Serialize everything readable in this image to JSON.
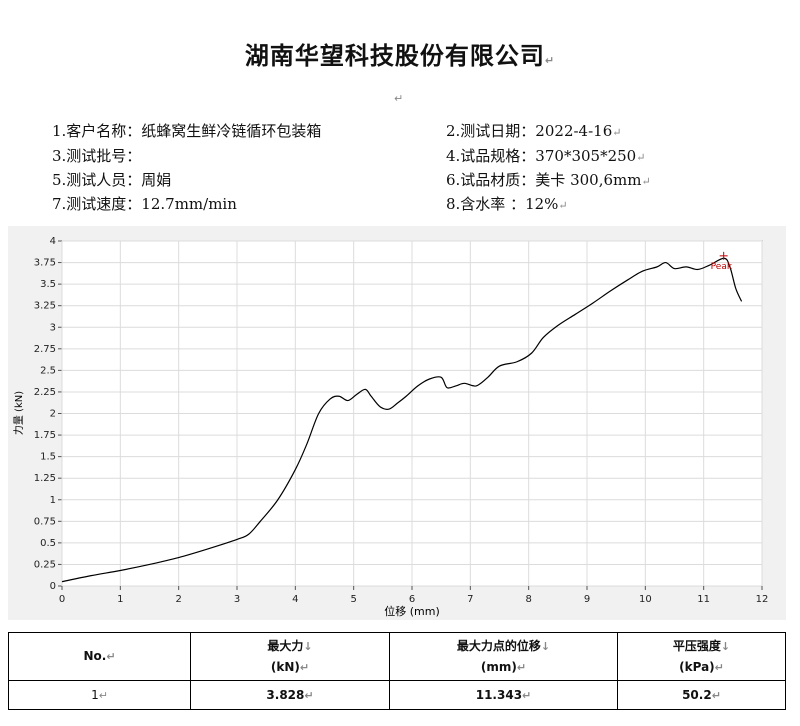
{
  "title": "湖南华望科技股份有限公司",
  "info": {
    "customer": "1.客户名称：纸蜂窝生鲜冷链循环包装箱",
    "test_date": "2.测试日期：2022-4-16",
    "batch_no": "3.测试批号：",
    "spec": "4.试品规格：370*305*250",
    "tester": "5.测试人员：周娟",
    "material": "6.试品材质：美卡 300,6mm",
    "speed": "7.测试速度：12.7mm/min",
    "moisture": "8.含水率  ：12%"
  },
  "chart_data": {
    "type": "line",
    "xlabel": "位移 (mm)",
    "ylabel": "力量 (kN)",
    "xlim": [
      0,
      12
    ],
    "ylim": [
      0,
      4
    ],
    "x_ticks": [
      "0",
      "1",
      "2",
      "3",
      "4",
      "5",
      "6",
      "7",
      "8",
      "9",
      "10",
      "11",
      "12"
    ],
    "y_ticks": [
      "0",
      "0.25",
      "0.5",
      "0.75",
      "1",
      "1.25",
      "1.5",
      "1.75",
      "2",
      "2.25",
      "2.5",
      "2.75",
      "3",
      "3.25",
      "3.5",
      "3.75",
      "4"
    ],
    "grid": true,
    "annotation": "Peak",
    "peak": {
      "x": 11.343,
      "y": 3.828
    },
    "series": [
      {
        "x": [
          0,
          0.5,
          1,
          1.5,
          2,
          2.5,
          3,
          3.2,
          3.4,
          3.7,
          4,
          4.2,
          4.4,
          4.6,
          4.75,
          4.9,
          5.05,
          5.2,
          5.3,
          5.45,
          5.6,
          5.75,
          5.9,
          6.1,
          6.3,
          6.5,
          6.6,
          6.75,
          6.9,
          7.1,
          7.3,
          7.5,
          7.8,
          8.05,
          8.25,
          8.5,
          8.8,
          9.1,
          9.4,
          9.7,
          9.95,
          10.2,
          10.35,
          10.5,
          10.7,
          10.9,
          11.1,
          11.35,
          11.45,
          11.55,
          11.65
        ],
        "y": [
          0.05,
          0.12,
          0.18,
          0.25,
          0.33,
          0.43,
          0.54,
          0.6,
          0.75,
          1.0,
          1.35,
          1.65,
          2.0,
          2.17,
          2.2,
          2.15,
          2.22,
          2.28,
          2.2,
          2.08,
          2.05,
          2.12,
          2.2,
          2.32,
          2.4,
          2.42,
          2.3,
          2.32,
          2.35,
          2.32,
          2.42,
          2.55,
          2.6,
          2.7,
          2.88,
          3.02,
          3.15,
          3.28,
          3.42,
          3.55,
          3.65,
          3.7,
          3.75,
          3.68,
          3.7,
          3.67,
          3.72,
          3.8,
          3.7,
          3.45,
          3.3
        ]
      }
    ]
  },
  "table": {
    "col1": "No.",
    "col2_line1": "最大力",
    "col2_line2": "(kN)",
    "col3": "最大力点的位移",
    "col3_line2": "(mm)",
    "col4_line1": "平压强度",
    "col4_line2": "(kPa)",
    "row1_no": "1",
    "row1_force": "3.828",
    "row1_disp": "11.343",
    "row1_strength": "50.2"
  },
  "marks": {
    "arrow": "↓",
    "return": "↵"
  }
}
